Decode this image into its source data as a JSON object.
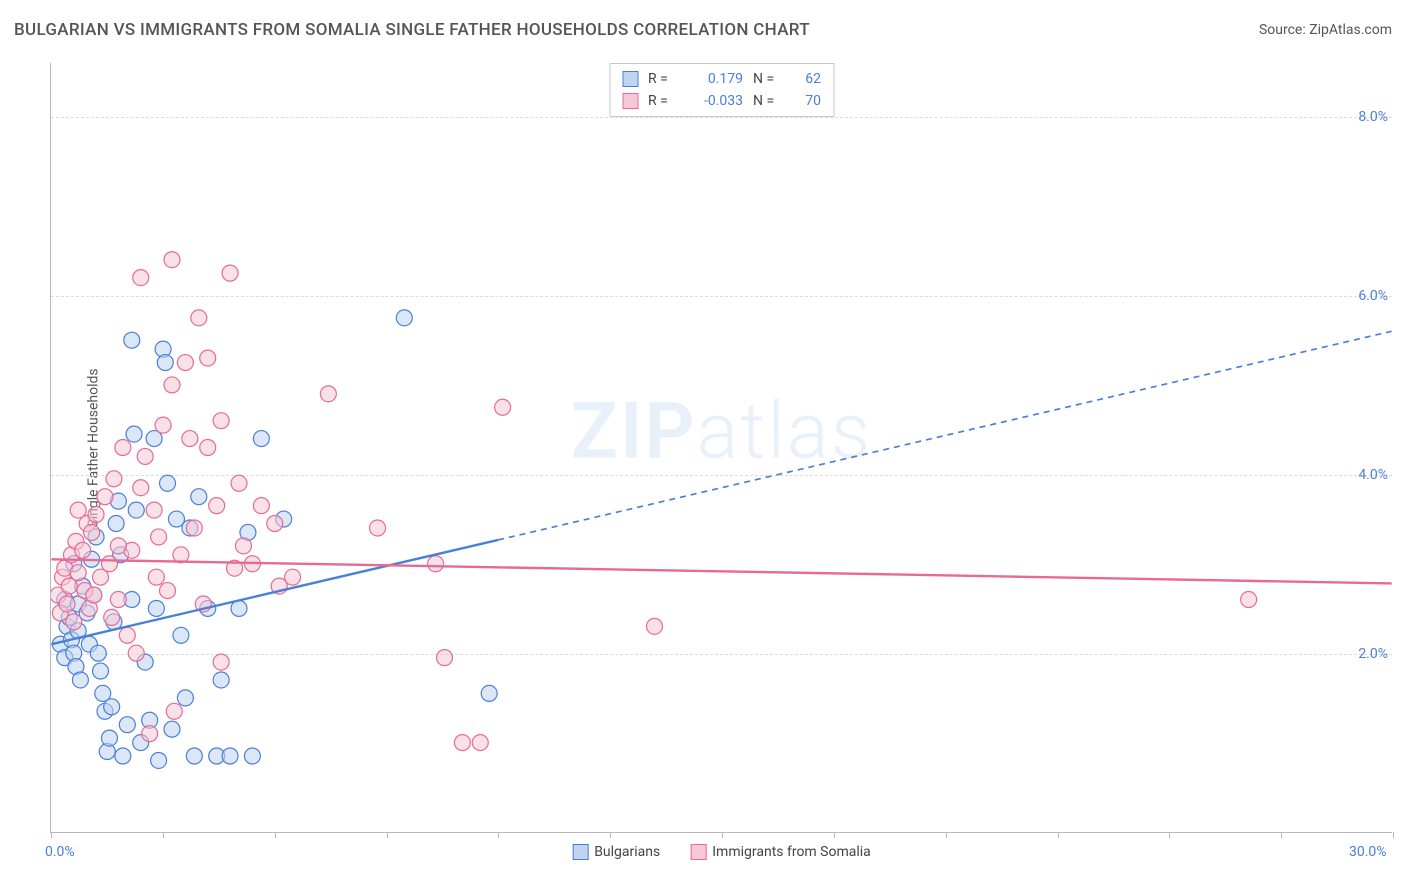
{
  "header": {
    "title": "BULGARIAN VS IMMIGRANTS FROM SOMALIA SINGLE FATHER HOUSEHOLDS CORRELATION CHART",
    "source": "Source: ZipAtlas.com"
  },
  "chart": {
    "type": "scatter",
    "y_title": "Single Father Households",
    "xlim": [
      0,
      30
    ],
    "ylim": [
      0,
      8.6
    ],
    "x_ticks": [
      0,
      2.5,
      5,
      7.5,
      10,
      12.5,
      15,
      17.5,
      20,
      22.5,
      25,
      27.5,
      30
    ],
    "x_tick_labels": {
      "0": "0.0%",
      "30": "30.0%"
    },
    "y_grid": [
      2,
      4,
      6,
      8
    ],
    "y_tick_labels": {
      "2": "2.0%",
      "4": "4.0%",
      "6": "6.0%",
      "8": "8.0%"
    },
    "background_color": "#ffffff",
    "grid_color": "#dcdcdc",
    "axis_color": "#b8b8b8",
    "label_color": "#4a7fd8",
    "label_fontsize": 14,
    "marker_radius": 8,
    "marker_stroke_width": 1.2,
    "series": [
      {
        "name": "Bulgarians",
        "fill": "#bed4f0",
        "stroke": "#4a7fd8",
        "fill_opacity": 0.55,
        "r_value": "0.179",
        "n_value": "62",
        "trend": {
          "x0": 0,
          "y0": 2.1,
          "x1": 30,
          "y1": 5.6,
          "solid_until_x": 10,
          "stroke_width": 2.4
        },
        "points": [
          [
            0.2,
            2.1
          ],
          [
            0.3,
            1.95
          ],
          [
            0.35,
            2.3
          ],
          [
            0.3,
            2.6
          ],
          [
            0.4,
            2.4
          ],
          [
            0.45,
            2.15
          ],
          [
            0.5,
            2.0
          ],
          [
            0.55,
            1.85
          ],
          [
            0.6,
            2.25
          ],
          [
            0.6,
            2.55
          ],
          [
            0.7,
            2.75
          ],
          [
            0.8,
            2.45
          ],
          [
            0.85,
            2.1
          ],
          [
            0.9,
            3.05
          ],
          [
            0.95,
            2.65
          ],
          [
            1.0,
            3.3
          ],
          [
            1.05,
            2.0
          ],
          [
            1.1,
            1.8
          ],
          [
            1.15,
            1.55
          ],
          [
            1.2,
            1.35
          ],
          [
            1.25,
            0.9
          ],
          [
            1.3,
            1.05
          ],
          [
            1.35,
            1.4
          ],
          [
            1.4,
            2.35
          ],
          [
            1.45,
            3.45
          ],
          [
            1.5,
            3.7
          ],
          [
            1.55,
            3.1
          ],
          [
            1.6,
            0.85
          ],
          [
            1.7,
            1.2
          ],
          [
            1.8,
            2.6
          ],
          [
            1.85,
            4.45
          ],
          [
            1.9,
            3.6
          ],
          [
            2.0,
            1.0
          ],
          [
            2.1,
            1.9
          ],
          [
            2.2,
            1.25
          ],
          [
            2.3,
            4.4
          ],
          [
            2.35,
            2.5
          ],
          [
            2.4,
            0.8
          ],
          [
            2.5,
            5.4
          ],
          [
            2.55,
            5.25
          ],
          [
            2.6,
            3.9
          ],
          [
            2.7,
            1.15
          ],
          [
            2.8,
            3.5
          ],
          [
            2.9,
            2.2
          ],
          [
            3.0,
            1.5
          ],
          [
            3.1,
            3.4
          ],
          [
            3.2,
            0.85
          ],
          [
            3.3,
            3.75
          ],
          [
            3.5,
            2.5
          ],
          [
            3.7,
            0.85
          ],
          [
            3.8,
            1.7
          ],
          [
            4.0,
            0.85
          ],
          [
            4.2,
            2.5
          ],
          [
            4.4,
            3.35
          ],
          [
            4.5,
            0.85
          ],
          [
            4.7,
            4.4
          ],
          [
            1.8,
            5.5
          ],
          [
            7.9,
            5.75
          ],
          [
            9.8,
            1.55
          ],
          [
            5.2,
            3.5
          ],
          [
            0.65,
            1.7
          ],
          [
            0.5,
            3.0
          ]
        ]
      },
      {
        "name": "Immigrants from Somalia",
        "fill": "#f5c8d6",
        "stroke": "#e86a94",
        "fill_opacity": 0.55,
        "r_value": "-0.033",
        "n_value": "70",
        "trend": {
          "x0": 0,
          "y0": 3.05,
          "x1": 30,
          "y1": 2.78,
          "solid_until_x": 30,
          "stroke_width": 2.4
        },
        "points": [
          [
            0.15,
            2.65
          ],
          [
            0.2,
            2.45
          ],
          [
            0.25,
            2.85
          ],
          [
            0.3,
            2.95
          ],
          [
            0.35,
            2.55
          ],
          [
            0.4,
            2.75
          ],
          [
            0.45,
            3.1
          ],
          [
            0.5,
            2.35
          ],
          [
            0.55,
            3.25
          ],
          [
            0.6,
            2.9
          ],
          [
            0.7,
            3.15
          ],
          [
            0.75,
            2.7
          ],
          [
            0.8,
            3.45
          ],
          [
            0.85,
            2.5
          ],
          [
            0.9,
            3.35
          ],
          [
            0.95,
            2.65
          ],
          [
            1.0,
            3.55
          ],
          [
            1.1,
            2.85
          ],
          [
            1.2,
            3.75
          ],
          [
            1.3,
            3.0
          ],
          [
            1.35,
            2.4
          ],
          [
            1.4,
            3.95
          ],
          [
            1.5,
            2.6
          ],
          [
            1.6,
            4.3
          ],
          [
            1.7,
            2.2
          ],
          [
            1.8,
            3.15
          ],
          [
            1.9,
            2.0
          ],
          [
            2.0,
            3.85
          ],
          [
            2.1,
            4.2
          ],
          [
            2.2,
            1.1
          ],
          [
            2.3,
            3.6
          ],
          [
            2.35,
            2.85
          ],
          [
            2.4,
            3.3
          ],
          [
            2.5,
            4.55
          ],
          [
            2.6,
            2.7
          ],
          [
            2.7,
            5.0
          ],
          [
            2.75,
            1.35
          ],
          [
            2.9,
            3.1
          ],
          [
            3.0,
            5.25
          ],
          [
            3.1,
            4.4
          ],
          [
            3.2,
            3.4
          ],
          [
            3.3,
            5.75
          ],
          [
            3.4,
            2.55
          ],
          [
            3.5,
            4.3
          ],
          [
            3.7,
            3.65
          ],
          [
            3.8,
            1.9
          ],
          [
            4.0,
            6.25
          ],
          [
            4.1,
            2.95
          ],
          [
            4.3,
            3.2
          ],
          [
            4.5,
            3.0
          ],
          [
            4.7,
            3.65
          ],
          [
            5.0,
            3.45
          ],
          [
            5.1,
            2.75
          ],
          [
            5.4,
            2.85
          ],
          [
            6.2,
            4.9
          ],
          [
            7.3,
            3.4
          ],
          [
            8.6,
            3.0
          ],
          [
            8.8,
            1.95
          ],
          [
            9.2,
            1.0
          ],
          [
            9.6,
            1.0
          ],
          [
            10.1,
            4.75
          ],
          [
            13.5,
            2.3
          ],
          [
            26.8,
            2.6
          ],
          [
            2.0,
            6.2
          ],
          [
            2.7,
            6.4
          ],
          [
            3.5,
            5.3
          ],
          [
            4.2,
            3.9
          ],
          [
            3.8,
            4.6
          ],
          [
            1.5,
            3.2
          ],
          [
            0.6,
            3.6
          ]
        ]
      }
    ],
    "stats_box": {
      "r_label": "R =",
      "n_label": "N ="
    },
    "legend": [
      {
        "swatch": "blue",
        "label": "Bulgarians"
      },
      {
        "swatch": "pink",
        "label": "Immigrants from Somalia"
      }
    ],
    "watermark": {
      "prefix": "ZIP",
      "suffix": "atlas"
    }
  }
}
